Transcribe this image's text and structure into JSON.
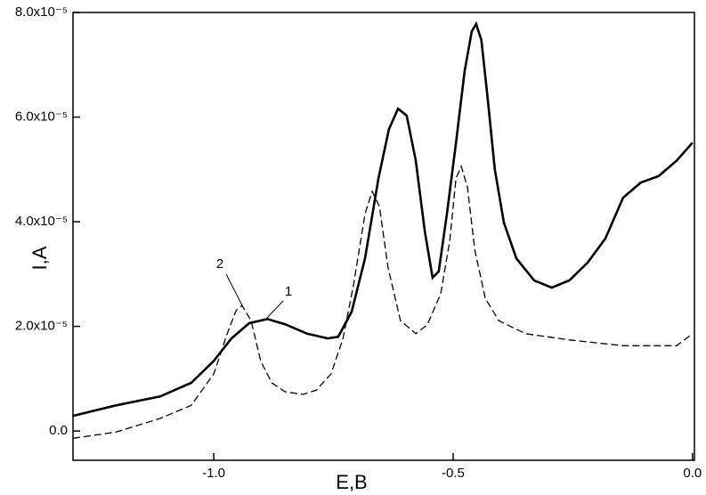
{
  "chart_data": {
    "type": "line",
    "xlabel": "E,B",
    "ylabel": "I,A",
    "xlim": [
      -1.294,
      0.004
    ],
    "ylim": [
      -5.6e-06,
      8e-05
    ],
    "xticks": [
      {
        "value": -1.0,
        "label": "-1.0"
      },
      {
        "value": -0.5,
        "label": "-0.5"
      },
      {
        "value": 0,
        "label": "0.0"
      }
    ],
    "yticks": [
      {
        "value": 0,
        "label": "0.0"
      },
      {
        "value": 2e-05,
        "label": "2.0x10⁻⁵"
      },
      {
        "value": 4e-05,
        "label": "4.0x10⁻⁵"
      },
      {
        "value": 6e-05,
        "label": "6.0x10⁻⁵"
      },
      {
        "value": 8e-05,
        "label": "8.0x10⁻⁵"
      }
    ],
    "annotations": [
      "1",
      "2"
    ],
    "series": [
      {
        "name": "1",
        "color": "#000000",
        "dash": false,
        "x": [
          -1.294,
          -1.204,
          -1.112,
          -1.047,
          -1.0,
          -0.963,
          -0.926,
          -0.888,
          -0.851,
          -0.805,
          -0.762,
          -0.74,
          -0.712,
          -0.684,
          -0.656,
          -0.634,
          -0.615,
          -0.597,
          -0.578,
          -0.559,
          -0.543,
          -0.53,
          -0.513,
          -0.494,
          -0.476,
          -0.461,
          -0.452,
          -0.441,
          -0.428,
          -0.413,
          -0.394,
          -0.368,
          -0.331,
          -0.294,
          -0.257,
          -0.219,
          -0.182,
          -0.145,
          -0.108,
          -0.071,
          -0.033,
          0.0
        ],
        "values": [
          2.9e-06,
          4.9e-06,
          6.6e-06,
          9.2e-06,
          1.34e-05,
          1.77e-05,
          2.06e-05,
          2.14e-05,
          2.04e-05,
          1.86e-05,
          1.77e-05,
          1.8e-05,
          2.28e-05,
          3.3e-05,
          4.83e-05,
          5.77e-05,
          6.16e-05,
          6.03e-05,
          5.17e-05,
          3.81e-05,
          2.93e-05,
          3.05e-05,
          4.15e-05,
          5.51e-05,
          6.88e-05,
          7.64e-05,
          7.78e-05,
          7.47e-05,
          6.37e-05,
          5e-05,
          3.98e-05,
          3.3e-05,
          2.88e-05,
          2.74e-05,
          2.88e-05,
          3.22e-05,
          3.68e-05,
          4.46e-05,
          4.75e-05,
          4.87e-05,
          5.17e-05,
          5.51e-05
        ]
      },
      {
        "name": "2",
        "color": "#000000",
        "dash": true,
        "x": [
          -1.294,
          -1.204,
          -1.112,
          -1.047,
          -1.0,
          -0.972,
          -0.953,
          -0.941,
          -0.922,
          -0.902,
          -0.879,
          -0.851,
          -0.814,
          -0.786,
          -0.755,
          -0.73,
          -0.708,
          -0.684,
          -0.669,
          -0.654,
          -0.636,
          -0.61,
          -0.578,
          -0.554,
          -0.526,
          -0.507,
          -0.494,
          -0.483,
          -0.47,
          -0.455,
          -0.433,
          -0.405,
          -0.349,
          -0.257,
          -0.145,
          -0.033,
          0.0
        ],
        "values": [
          -1.4e-06,
          -2e-07,
          2.4e-06,
          4.9e-06,
          1.09e-05,
          1.86e-05,
          2.31e-05,
          2.4e-05,
          2.11e-05,
          1.34e-05,
          9.2e-06,
          7.5e-06,
          7e-06,
          7.8e-06,
          1.09e-05,
          1.77e-05,
          2.79e-05,
          4.15e-05,
          4.58e-05,
          4.29e-05,
          3.13e-05,
          2.11e-05,
          1.86e-05,
          2.03e-05,
          2.62e-05,
          3.64e-05,
          4.83e-05,
          5.06e-05,
          4.66e-05,
          3.47e-05,
          2.54e-05,
          2.11e-05,
          1.86e-05,
          1.74e-05,
          1.63e-05,
          1.63e-05,
          1.86e-05
        ]
      }
    ]
  }
}
